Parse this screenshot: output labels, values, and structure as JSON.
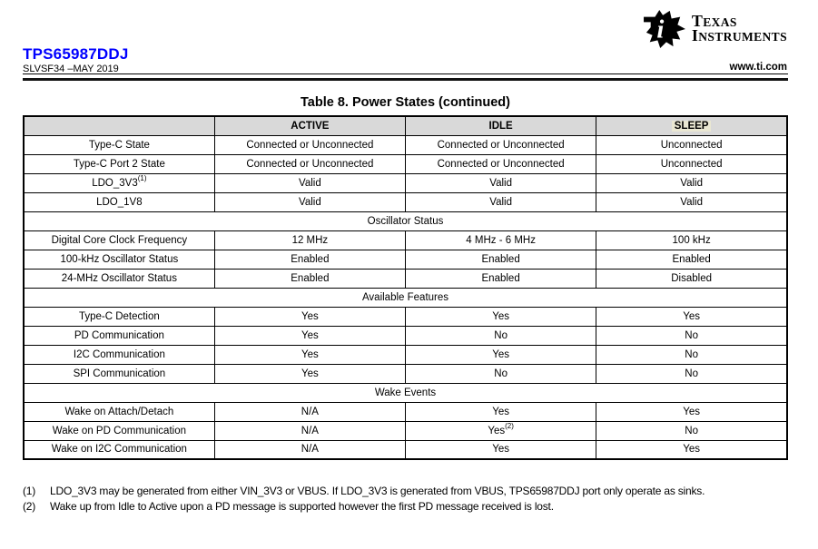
{
  "header": {
    "part_number": "TPS65987DDJ",
    "doc_code": "SLVSF34 –MAY 2019",
    "website": "www.ti.com",
    "brand_line1": "Texas",
    "brand_line2": "Instruments"
  },
  "colors": {
    "accent_blue": "#0000ff",
    "header_fill": "#d9d9d9",
    "sleep_highlight": "#eae7d2"
  },
  "table": {
    "title": "Table 8. Power States (continued)",
    "columns": [
      {
        "label": ""
      },
      {
        "label": "ACTIVE"
      },
      {
        "label": "IDLE"
      },
      {
        "label": "SLEEP",
        "highlight": true
      }
    ],
    "sections": [
      {
        "heading": null,
        "rows": [
          {
            "label": "Type-C State",
            "values": [
              "Connected or Unconnected",
              "Connected or Unconnected",
              "Unconnected"
            ]
          },
          {
            "label": "Type-C Port 2 State",
            "values": [
              "Connected or Unconnected",
              "Connected or Unconnected",
              "Unconnected"
            ]
          },
          {
            "label": {
              "text": "LDO_3V3",
              "sup": "(1)"
            },
            "values": [
              "Valid",
              "Valid",
              "Valid"
            ]
          },
          {
            "label": "LDO_1V8",
            "values": [
              "Valid",
              "Valid",
              "Valid"
            ]
          }
        ]
      },
      {
        "heading": "Oscillator Status",
        "rows": [
          {
            "label": "Digital Core Clock Frequency",
            "values": [
              "12 MHz",
              "4 MHz - 6 MHz",
              "100 kHz"
            ]
          },
          {
            "label": "100-kHz Oscillator Status",
            "values": [
              "Enabled",
              "Enabled",
              "Enabled"
            ]
          },
          {
            "label": "24-MHz Oscillator Status",
            "values": [
              "Enabled",
              "Enabled",
              "Disabled"
            ]
          }
        ]
      },
      {
        "heading": "Available Features",
        "rows": [
          {
            "label": "Type-C Detection",
            "values": [
              "Yes",
              "Yes",
              "Yes"
            ]
          },
          {
            "label": "PD Communication",
            "values": [
              "Yes",
              "No",
              "No"
            ]
          },
          {
            "label": "I2C Communication",
            "values": [
              "Yes",
              "Yes",
              "No"
            ]
          },
          {
            "label": "SPI Communication",
            "values": [
              "Yes",
              "No",
              "No"
            ]
          }
        ]
      },
      {
        "heading": "Wake Events",
        "rows": [
          {
            "label": "Wake on Attach/Detach",
            "values": [
              "N/A",
              "Yes",
              "Yes"
            ]
          },
          {
            "label": "Wake on PD Communication",
            "values": [
              "N/A",
              {
                "text": "Yes",
                "sup": "(2)"
              },
              "No"
            ]
          },
          {
            "label": "Wake on I2C Communication",
            "values": [
              "N/A",
              "Yes",
              "Yes"
            ]
          }
        ]
      }
    ]
  },
  "footnotes": [
    {
      "marker": "(1)",
      "text": "LDO_3V3 may be generated from either VIN_3V3 or VBUS. If LDO_3V3 is generated from VBUS, TPS65987DDJ port only operate as sinks."
    },
    {
      "marker": "(2)",
      "text": "Wake up from Idle to Active upon a PD message is supported however the first PD message received is lost."
    }
  ]
}
